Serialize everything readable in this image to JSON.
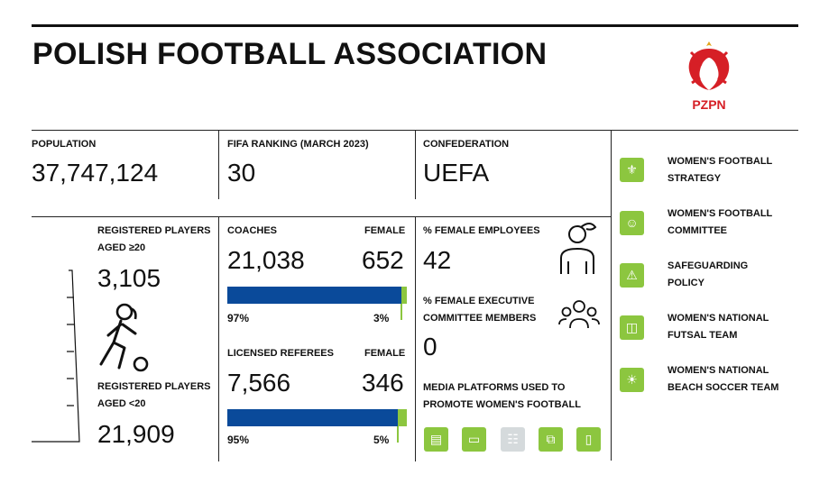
{
  "title": "POLISH FOOTBALL ASSOCIATION",
  "logo": {
    "text": "PZPN",
    "color": "#d61f26"
  },
  "stats": {
    "population": {
      "label": "POPULATION",
      "value": "37,747,124"
    },
    "fifa_ranking": {
      "label": "FIFA RANKING (MARCH 2023)",
      "value": "30"
    },
    "confederation": {
      "label": "CONFEDERATION",
      "value": "UEFA"
    }
  },
  "players": {
    "aged_over20": {
      "label_line1": "REGISTERED PLAYERS",
      "label_line2": "AGED ≥20",
      "value": "3,105"
    },
    "aged_under20": {
      "label_line1": "REGISTERED PLAYERS",
      "label_line2": "AGED <20",
      "value": "21,909"
    },
    "icon": "female-footballer-icon"
  },
  "coaches": {
    "label": "COACHES",
    "female_label": "FEMALE",
    "total": "21,038",
    "female": "652",
    "male_pct_label": "97%",
    "female_pct_label": "3%",
    "female_fraction": 0.03
  },
  "referees": {
    "label": "LICENSED REFEREES",
    "female_label": "FEMALE",
    "total": "7,566",
    "female": "346",
    "male_pct_label": "95%",
    "female_pct_label": "5%",
    "female_fraction": 0.05
  },
  "employees": {
    "label": "% FEMALE EMPLOYEES",
    "value": "42",
    "icon": "female-person-icon"
  },
  "executive": {
    "label_line1": "% FEMALE EXECUTIVE",
    "label_line2": "COMMITTEE MEMBERS",
    "value": "0",
    "icon": "committee-group-icon"
  },
  "media": {
    "label_line1": "MEDIA PLATFORMS USED TO",
    "label_line2": "PROMOTE WOMEN'S FOOTBALL",
    "platforms": [
      {
        "icon": "newspaper-icon",
        "active": true
      },
      {
        "icon": "tv-icon",
        "active": true
      },
      {
        "icon": "radio-icon",
        "active": false
      },
      {
        "icon": "web-icon",
        "active": true
      },
      {
        "icon": "mobile-social-icon",
        "active": true
      }
    ]
  },
  "sidebar": [
    {
      "line1": "WOMEN'S FOOTBALL",
      "line2": "STRATEGY",
      "icon": "strategy-board-icon"
    },
    {
      "line1": "WOMEN'S FOOTBALL",
      "line2": "COMMITTEE",
      "icon": "committee-icon"
    },
    {
      "line1": "SAFEGUARDING",
      "line2": "POLICY",
      "icon": "alarm-light-icon"
    },
    {
      "line1": "WOMEN'S NATIONAL",
      "line2": "FUTSAL TEAM",
      "icon": "futsal-court-icon"
    },
    {
      "line1": "WOMEN'S NATIONAL",
      "line2": "BEACH SOCCER TEAM",
      "icon": "beach-ball-icon"
    }
  ],
  "colors": {
    "green": "#8cc63f",
    "blue": "#0a4a9a",
    "grey": "#d5dadc"
  }
}
